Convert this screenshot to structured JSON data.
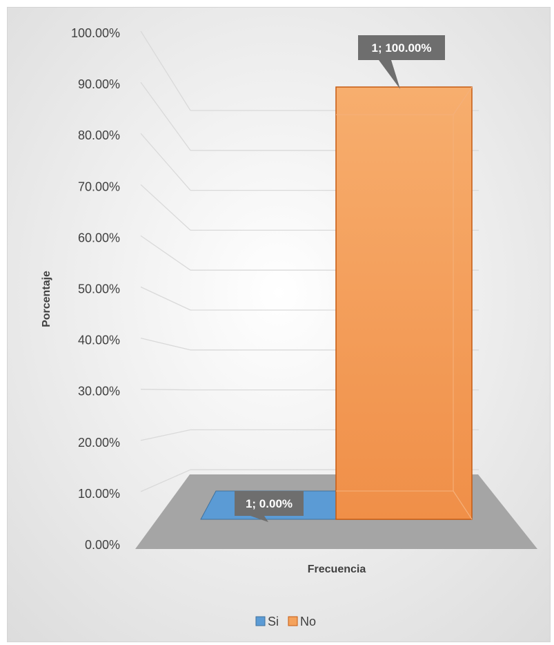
{
  "chart_data": {
    "type": "bar",
    "style": "3d-column",
    "categories": [
      "Frecuencia"
    ],
    "series": [
      {
        "name": "Si",
        "values": [
          0.0
        ],
        "label": "1; 0.00%",
        "color": "#5b9bd5"
      },
      {
        "name": "No",
        "values": [
          100.0
        ],
        "label": "1; 100.00%",
        "color": "#f4a25c"
      }
    ],
    "xlabel": "Frecuencia",
    "ylabel": "Porcentaje",
    "ylim": [
      0,
      100
    ],
    "yticks": [
      "0.00%",
      "10.00%",
      "20.00%",
      "30.00%",
      "40.00%",
      "50.00%",
      "60.00%",
      "70.00%",
      "80.00%",
      "90.00%",
      "100.00%"
    ],
    "grid": true,
    "legend_position": "bottom",
    "colors": {
      "bar_si": "#5b9bd5",
      "bar_no": "#f4a25c",
      "bar_no_edge": "#c55a11",
      "floor": "#a5a5a5",
      "label_box": "#6e6e6e"
    }
  }
}
